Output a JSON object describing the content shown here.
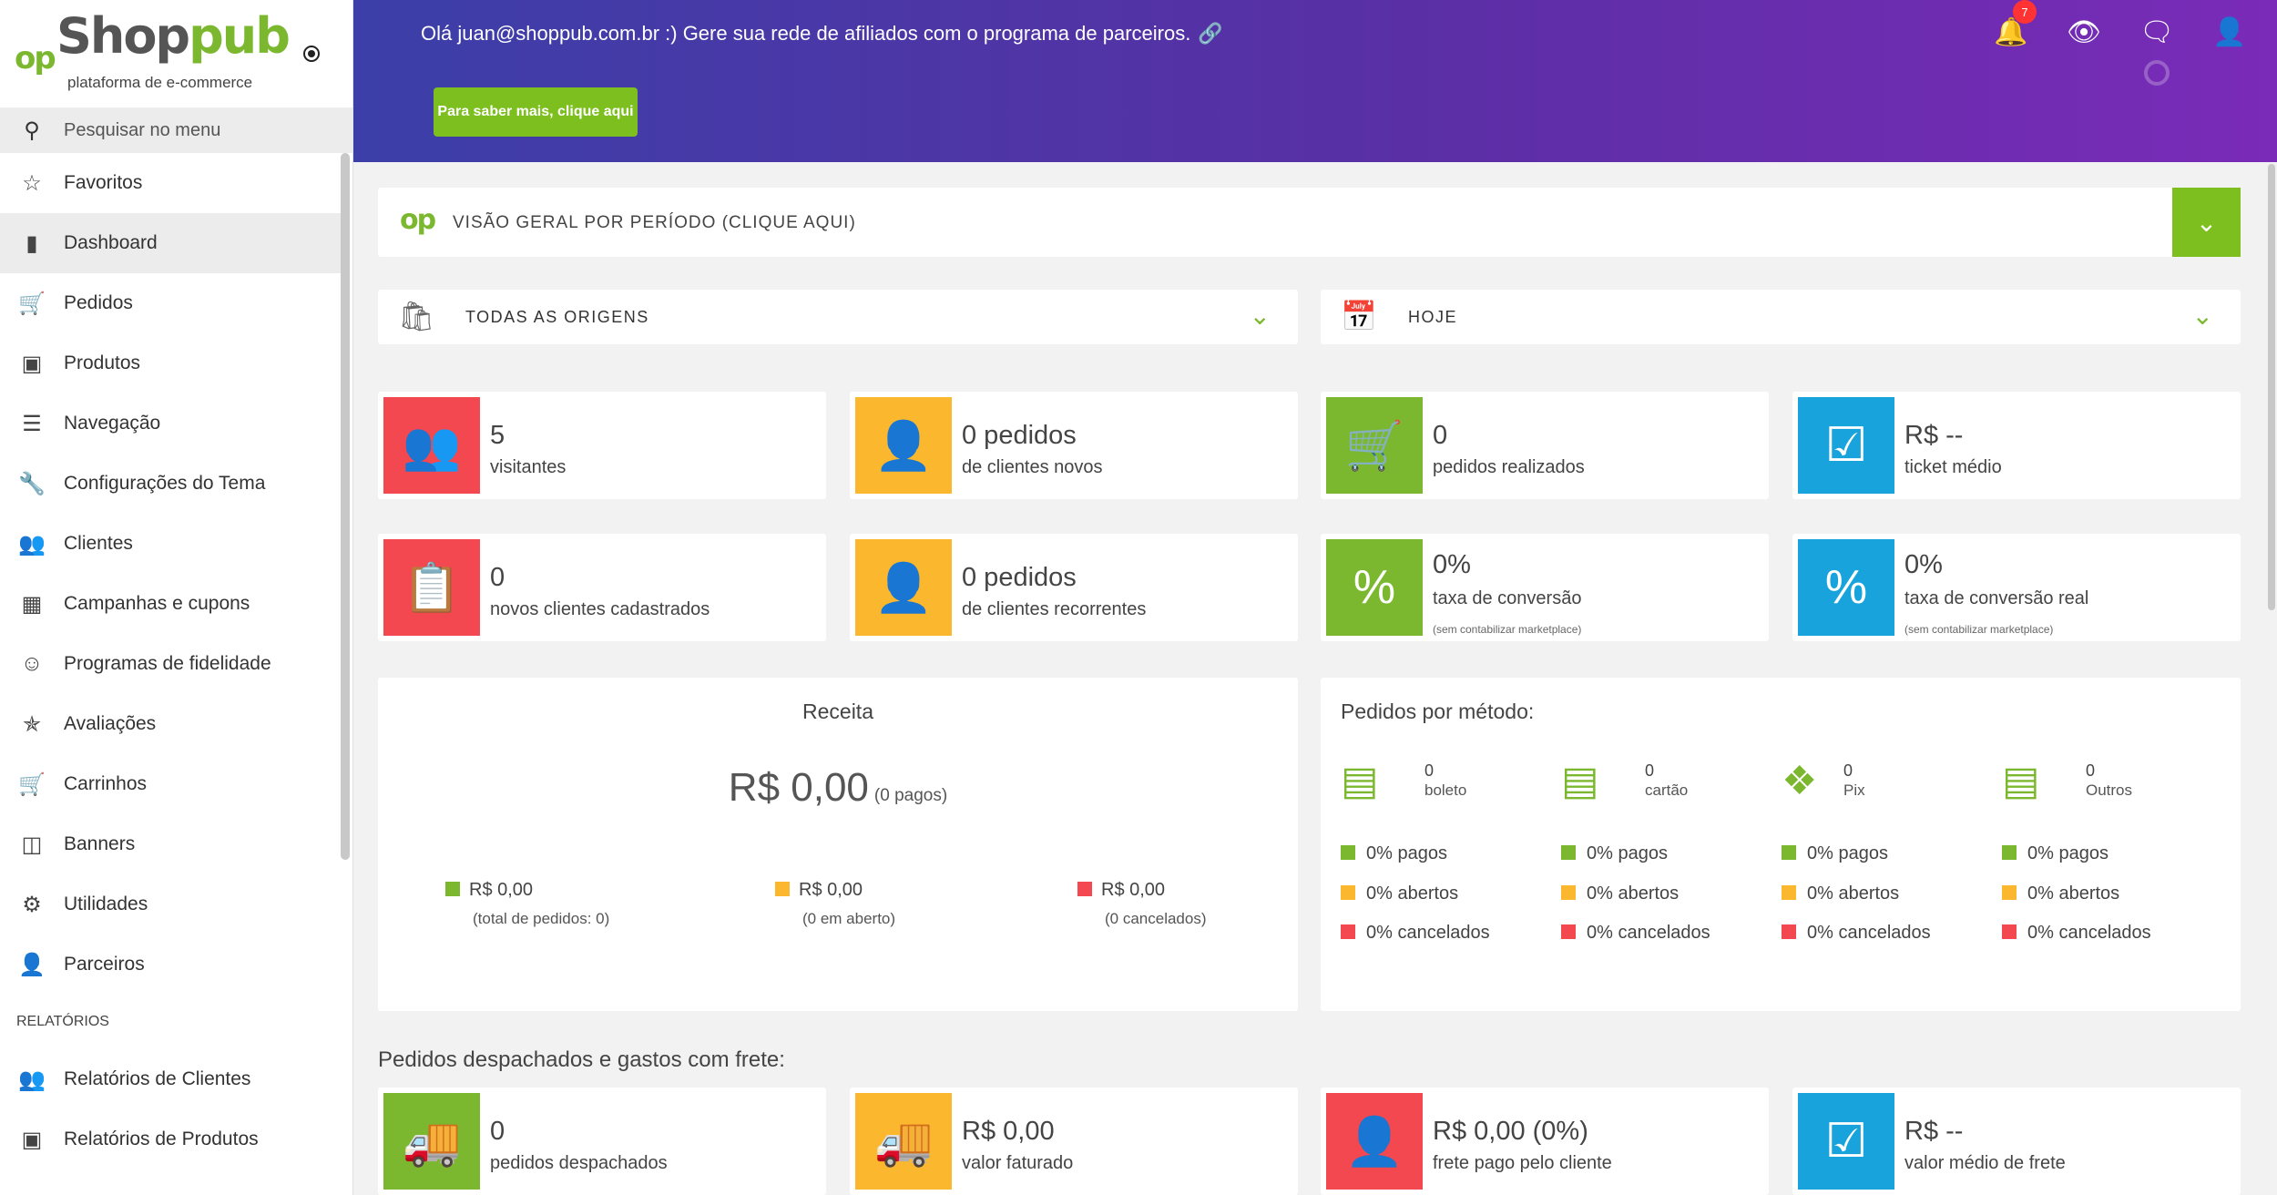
{
  "app": {
    "brand_prefix": "op",
    "brand_name_a": "Shop",
    "brand_name_b": "pub",
    "tagline": "plataforma de e-commerce"
  },
  "sidebar": {
    "search_placeholder": "Pesquisar no menu",
    "items": [
      {
        "label": "Favoritos",
        "icon": "star-icon"
      },
      {
        "label": "Dashboard",
        "icon": "bar-chart-icon"
      },
      {
        "label": "Pedidos",
        "icon": "cart-icon"
      },
      {
        "label": "Produtos",
        "icon": "box-icon"
      },
      {
        "label": "Navegação",
        "icon": "menu-icon"
      },
      {
        "label": "Configurações do Tema",
        "icon": "wrench-icon"
      },
      {
        "label": "Clientes",
        "icon": "people-icon"
      },
      {
        "label": "Campanhas e cupons",
        "icon": "coupon-icon"
      },
      {
        "label": "Programas de fidelidade",
        "icon": "smile-icon"
      },
      {
        "label": "Avaliações",
        "icon": "star-badge-icon"
      },
      {
        "label": "Carrinhos",
        "icon": "cart-add-icon"
      },
      {
        "label": "Banners",
        "icon": "banner-icon"
      },
      {
        "label": "Utilidades",
        "icon": "gear-icon"
      },
      {
        "label": "Parceiros",
        "icon": "partner-icon"
      }
    ],
    "reports_label": "RELATÓRIOS",
    "report_items": [
      {
        "label": "Relatórios de Clientes",
        "icon": "people-icon"
      },
      {
        "label": "Relatórios de Produtos",
        "icon": "box-icon"
      }
    ]
  },
  "header": {
    "greeting": "Olá juan@shoppub.com.br :) Gere sua rede de afiliados com o programa de parceiros.",
    "cta_label": "Para saber mais, clique aqui",
    "notification_count": "7"
  },
  "overview": {
    "prefix": "op",
    "title": "VISÃO GERAL POR PERÍODO (CLIQUE AQUI)"
  },
  "filters": {
    "origin": "TODAS AS ORIGENS",
    "period": "HOJE"
  },
  "cards": [
    {
      "value": "5",
      "label": "visitantes",
      "sub": ""
    },
    {
      "value": "0 pedidos",
      "label": "de clientes novos",
      "sub": ""
    },
    {
      "value": "0",
      "label": "pedidos realizados",
      "sub": ""
    },
    {
      "value": "R$ --",
      "label": "ticket médio",
      "sub": ""
    },
    {
      "value": "0",
      "label": "novos clientes cadastrados",
      "sub": ""
    },
    {
      "value": "0 pedidos",
      "label": "de clientes recorrentes",
      "sub": ""
    },
    {
      "value": "0%",
      "label": "taxa de conversão",
      "sub": "(sem contabilizar marketplace)"
    },
    {
      "value": "0%",
      "label": "taxa de conversão real",
      "sub": "(sem contabilizar marketplace)"
    }
  ],
  "receita": {
    "title": "Receita",
    "total": "R$ 0,00",
    "paid_note": "(0 pagos)",
    "legend": [
      {
        "amount": "R$ 0,00",
        "note": "(total de pedidos: 0)",
        "color": "#7cb82f"
      },
      {
        "amount": "R$ 0,00",
        "note": "(0 em aberto)",
        "color": "#fbb72d"
      },
      {
        "amount": "R$ 0,00",
        "note": "(0 cancelados)",
        "color": "#f3484f"
      }
    ]
  },
  "metodos": {
    "title": "Pedidos por método:",
    "items": [
      {
        "count": "0",
        "name": "boleto",
        "icon": "barcode-icon",
        "pagos": "0% pagos",
        "abertos": "0% abertos",
        "cancelados": "0% cancelados"
      },
      {
        "count": "0",
        "name": "cartão",
        "icon": "credit-card-icon",
        "pagos": "0% pagos",
        "abertos": "0% abertos",
        "cancelados": "0% cancelados"
      },
      {
        "count": "0",
        "name": "Pix",
        "icon": "pix-icon",
        "pagos": "0% pagos",
        "abertos": "0% abertos",
        "cancelados": "0% cancelados"
      },
      {
        "count": "0",
        "name": "Outros",
        "icon": "money-card-icon",
        "pagos": "0% pagos",
        "abertos": "0% abertos",
        "cancelados": "0% cancelados"
      }
    ]
  },
  "shipping": {
    "title": "Pedidos despachados e gastos com frete:",
    "cards": [
      {
        "value": "0",
        "label": "pedidos despachados"
      },
      {
        "value": "R$ 0,00",
        "label": "valor faturado"
      },
      {
        "value": "R$ 0,00 (0%)",
        "label": "frete pago pelo cliente"
      },
      {
        "value": "R$ --",
        "label": "valor médio de frete"
      }
    ]
  },
  "colors": {
    "green": "#7cb82f",
    "yellow": "#fbb72d",
    "red": "#f3484f",
    "blue": "#18a3dc",
    "header_start": "#3c3fa8",
    "header_end": "#7a2bb8"
  }
}
